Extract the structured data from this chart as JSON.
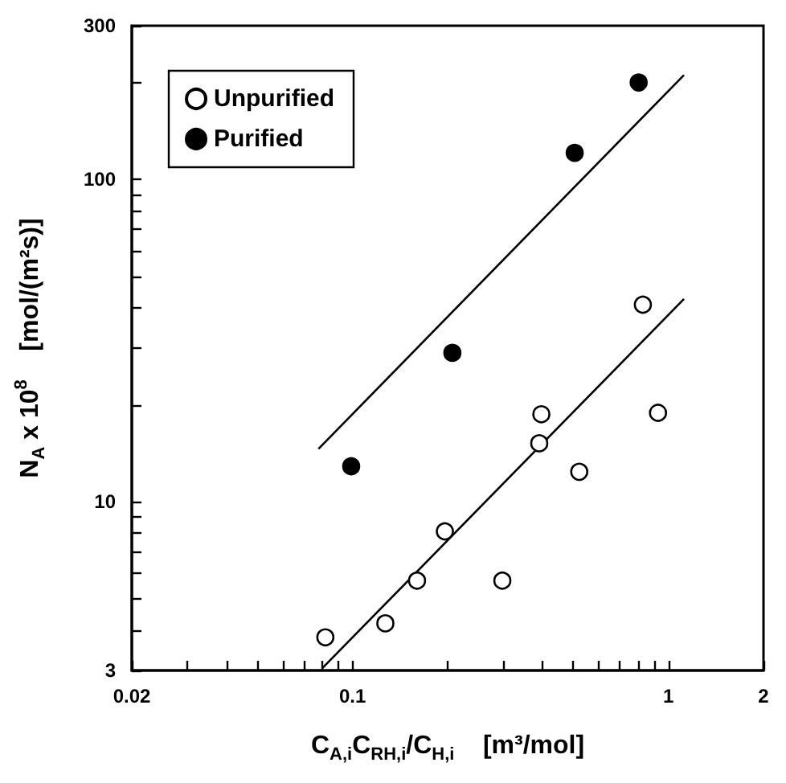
{
  "chart_data": {
    "type": "scatter",
    "xlabel": "C$_{A,i}$C$_{RH,i}$/C$_{H,i}$    [m³/mol]",
    "ylabel": "N$_{A}$ x 10$^{8}$    [mol/(m²s)]",
    "log": "xy",
    "xlim": [
      0.02,
      2
    ],
    "ylim": [
      3,
      300
    ],
    "xticks": [
      0.02,
      {
        "value": 0.03,
        "label": null
      },
      {
        "value": 0.04,
        "label": null
      },
      {
        "value": 0.05,
        "label": null
      },
      {
        "value": 0.06,
        "label": null
      },
      {
        "value": 0.07,
        "label": null
      },
      {
        "value": 0.08,
        "label": null
      },
      {
        "value": 0.09,
        "label": null
      },
      0.1,
      {
        "value": 0.2,
        "label": null
      },
      {
        "value": 0.3,
        "label": null
      },
      {
        "value": 0.4,
        "label": null
      },
      {
        "value": 0.5,
        "label": null
      },
      {
        "value": 0.6,
        "label": null
      },
      {
        "value": 0.7,
        "label": null
      },
      {
        "value": 0.8,
        "label": null
      },
      {
        "value": 0.9,
        "label": null
      },
      1,
      2
    ],
    "yticks": [
      3,
      {
        "value": 4,
        "label": null
      },
      {
        "value": 5,
        "label": null
      },
      {
        "value": 6,
        "label": null
      },
      {
        "value": 7,
        "label": null
      },
      {
        "value": 8,
        "label": null
      },
      {
        "value": 9,
        "label": null
      },
      10,
      {
        "value": 20,
        "label": null
      },
      {
        "value": 30,
        "label": null
      },
      {
        "value": 40,
        "label": null
      },
      {
        "value": 50,
        "label": null
      },
      {
        "value": 60,
        "label": null
      },
      {
        "value": 70,
        "label": null
      },
      {
        "value": 80,
        "label": null
      },
      {
        "value": 90,
        "label": null
      },
      100,
      {
        "value": 200,
        "label": null
      },
      300
    ],
    "grid": false,
    "legend": "top left",
    "marker": "circle",
    "series": [
      {
        "name": "Unpurified",
        "color": "#ffffff",
        "x": [
          0.082,
          0.127,
          0.16,
          0.196,
          0.298,
          0.39,
          0.396,
          0.522,
          0.83,
          0.927
        ],
        "values": [
          3.8,
          4.2,
          5.7,
          8.1,
          5.7,
          15.2,
          18.7,
          12.4,
          40.9,
          18.9
        ]
      },
      {
        "name": "Purified",
        "color": "#000000",
        "x": [
          0.099,
          0.207,
          0.505,
          0.805
        ],
        "values": [
          12.9,
          29,
          121,
          200
        ]
      },
      {
        "type": "line",
        "color": "#000000",
        "marker": "none",
        "x": [
          0.078,
          1.12
        ],
        "values": [
          14.6,
          211
        ]
      },
      {
        "type": "line",
        "color": "#000000",
        "marker": "none",
        "x": [
          0.08,
          1.12
        ],
        "values": [
          3.04,
          42.6
        ]
      }
    ]
  }
}
